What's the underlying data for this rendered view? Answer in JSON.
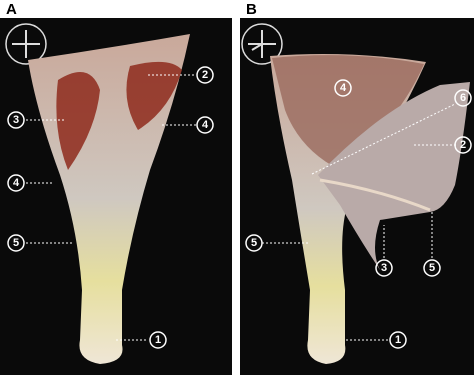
{
  "panels": [
    {
      "label": "A",
      "callouts": [
        "2",
        "3",
        "4",
        "4",
        "5",
        "1"
      ]
    },
    {
      "label": "B",
      "callouts": [
        "4",
        "6",
        "2",
        "5",
        "3",
        "5",
        "1"
      ]
    }
  ]
}
